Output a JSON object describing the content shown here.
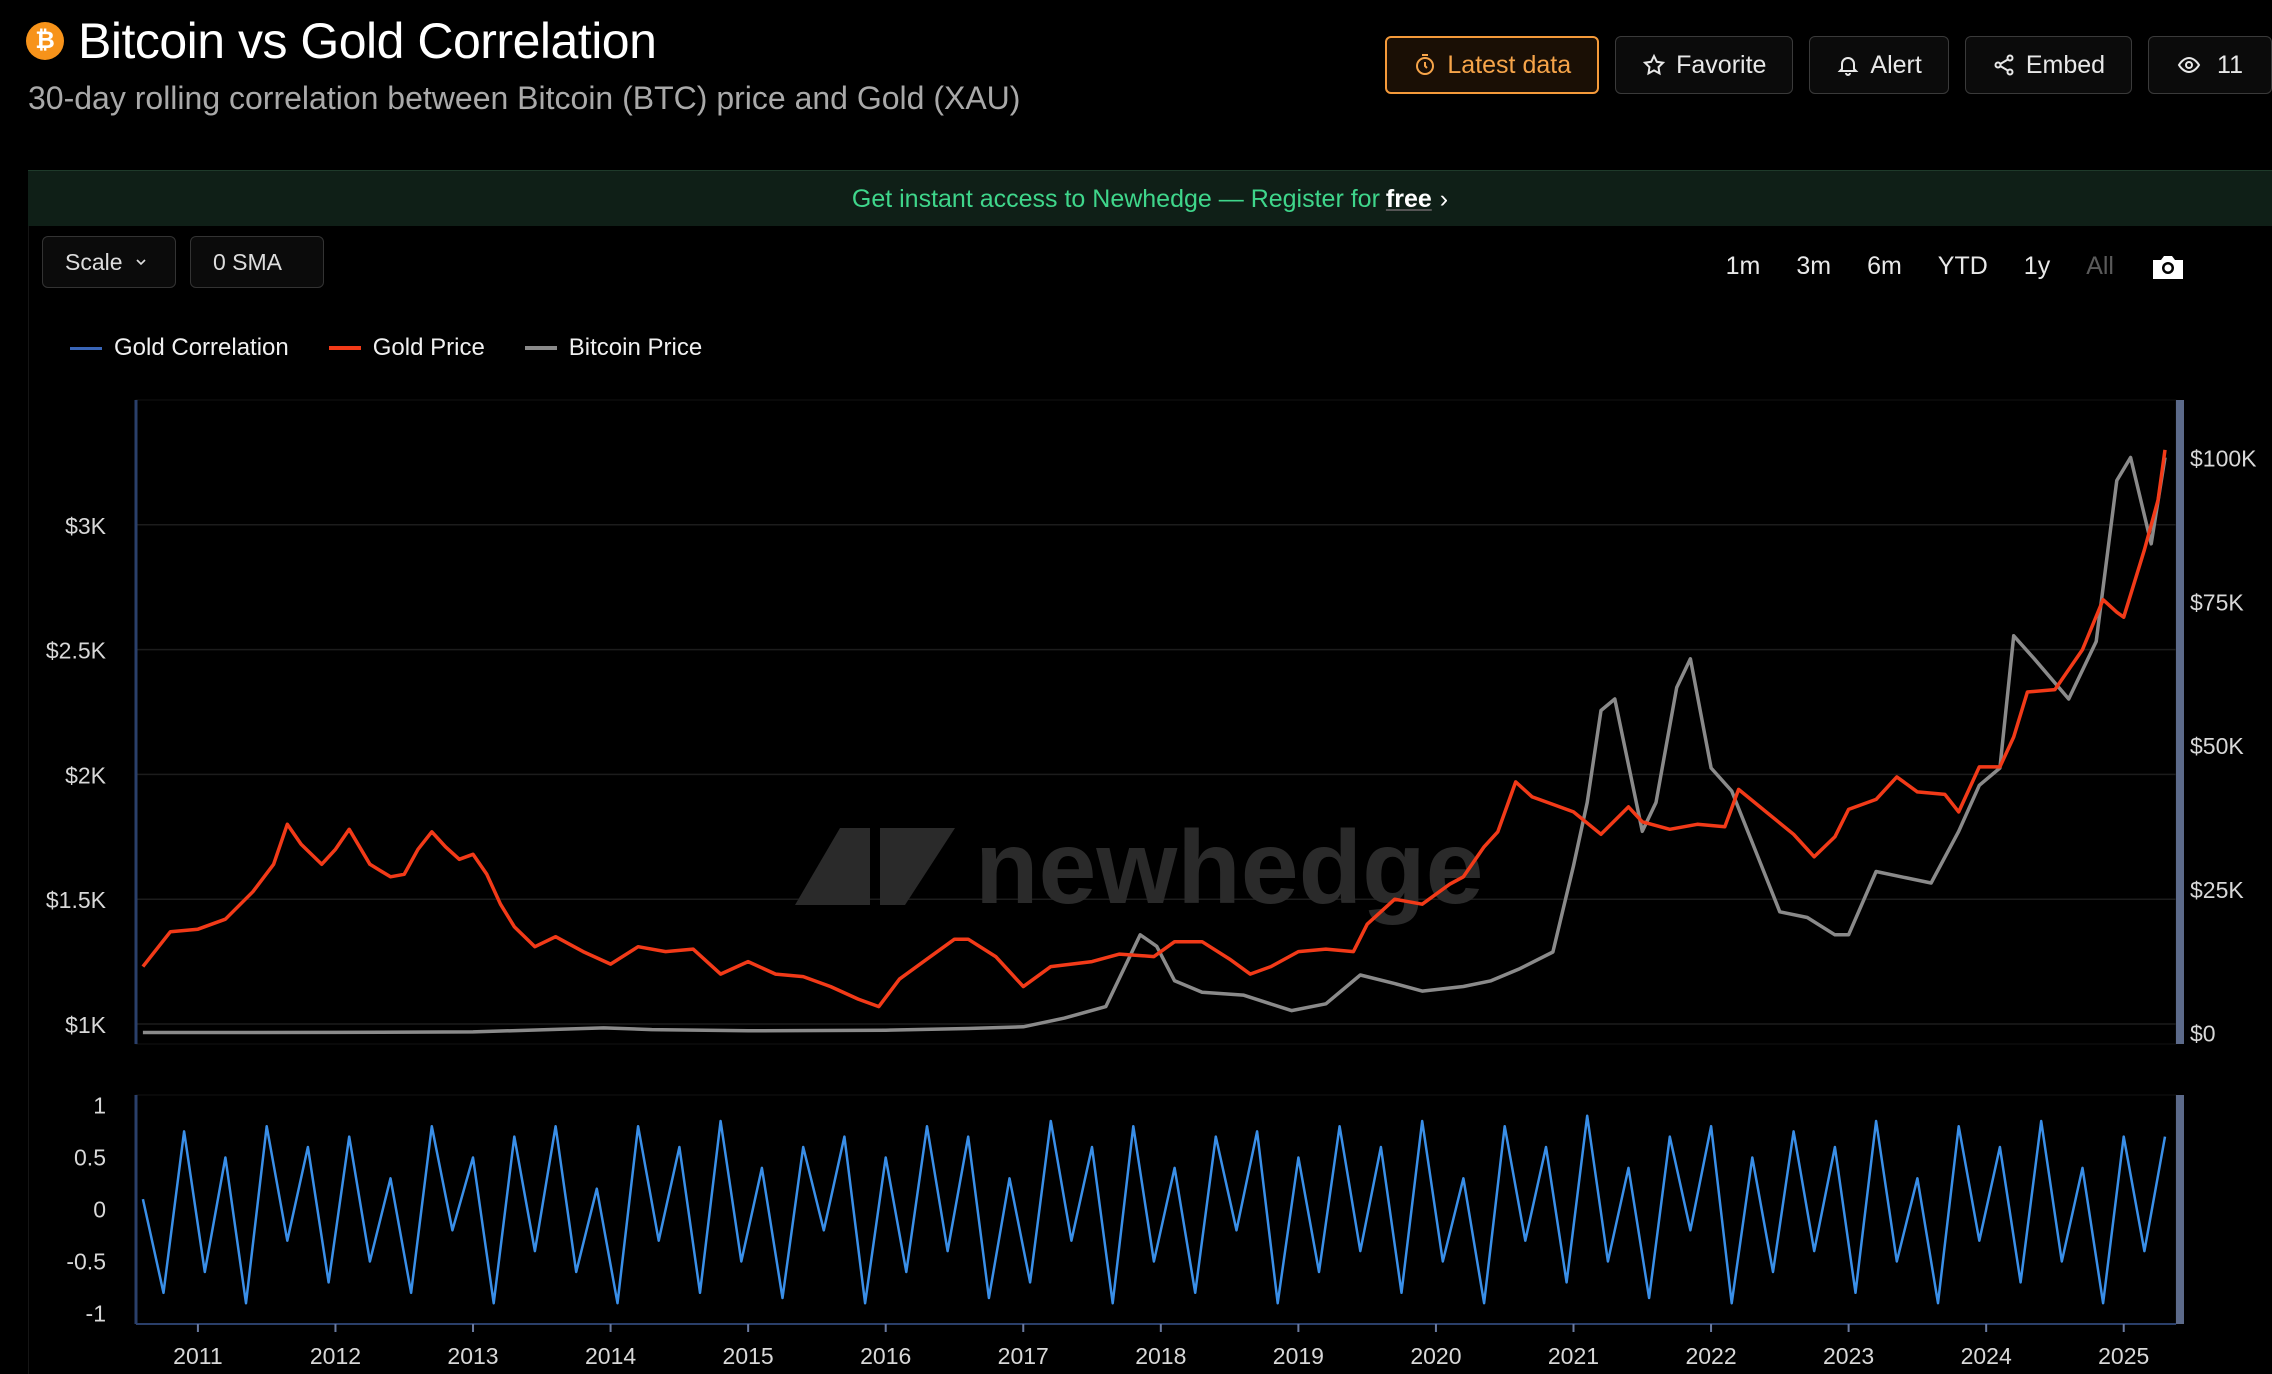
{
  "header": {
    "title": "Bitcoin vs Gold Correlation",
    "subtitle": "30-day rolling correlation between Bitcoin (BTC) price and Gold (XAU)",
    "actions": {
      "latest": "Latest data",
      "favorite": "Favorite",
      "alert": "Alert",
      "embed": "Embed",
      "views": "11"
    }
  },
  "banner": {
    "text": "Get instant access to Newhedge — Register for",
    "free": "free"
  },
  "controls": {
    "scale": "Scale",
    "sma": "0 SMA"
  },
  "ranges": [
    "1m",
    "3m",
    "6m",
    "YTD",
    "1y",
    "All"
  ],
  "watermark": "newhedge",
  "colors": {
    "correlation": "#3a8fe8",
    "gold": "#f23a18",
    "bitcoin": "#8a8a8a",
    "accent": "#f59a3a",
    "banner_text": "#3fd68b"
  },
  "chart_data": [
    {
      "type": "line",
      "panel": "price",
      "legend": [
        "Gold Correlation",
        "Gold Price",
        "Bitcoin Price"
      ],
      "legend_placement": "top-left",
      "left_axis": {
        "ticks": [
          "$1K",
          "$1.5K",
          "$2K",
          "$2.5K",
          "$3K"
        ],
        "values": [
          1000,
          1500,
          2000,
          2500,
          3000
        ],
        "ylim": [
          920,
          3500
        ]
      },
      "right_axis": {
        "ticks": [
          "$0",
          "$25K",
          "$50K",
          "$75K",
          "$100K"
        ],
        "values": [
          0,
          25000,
          50000,
          75000,
          100000
        ],
        "ylim": [
          -2000,
          110000
        ]
      },
      "xlim": [
        2010.55,
        2025.38
      ],
      "series": [
        {
          "name": "Gold Price",
          "axis": "left",
          "x": [
            2010.6,
            2010.8,
            2011.0,
            2011.2,
            2011.4,
            2011.55,
            2011.65,
            2011.75,
            2011.9,
            2012.0,
            2012.1,
            2012.25,
            2012.4,
            2012.5,
            2012.6,
            2012.7,
            2012.8,
            2012.9,
            2013.0,
            2013.1,
            2013.2,
            2013.3,
            2013.45,
            2013.6,
            2013.8,
            2014.0,
            2014.2,
            2014.4,
            2014.6,
            2014.8,
            2015.0,
            2015.2,
            2015.4,
            2015.6,
            2015.8,
            2015.95,
            2016.1,
            2016.3,
            2016.5,
            2016.6,
            2016.8,
            2017.0,
            2017.2,
            2017.5,
            2017.7,
            2017.95,
            2018.1,
            2018.3,
            2018.5,
            2018.65,
            2018.8,
            2019.0,
            2019.2,
            2019.4,
            2019.5,
            2019.7,
            2019.9,
            2020.1,
            2020.2,
            2020.35,
            2020.45,
            2020.58,
            2020.7,
            2020.85,
            2021.0,
            2021.2,
            2021.4,
            2021.5,
            2021.7,
            2021.9,
            2022.1,
            2022.2,
            2022.4,
            2022.6,
            2022.75,
            2022.9,
            2023.0,
            2023.2,
            2023.35,
            2023.5,
            2023.7,
            2023.8,
            2023.95,
            2024.1,
            2024.2,
            2024.3,
            2024.5,
            2024.7,
            2024.85,
            2024.95,
            2025.0,
            2025.15,
            2025.25,
            2025.3
          ],
          "values": [
            1230,
            1370,
            1380,
            1420,
            1530,
            1640,
            1800,
            1720,
            1640,
            1700,
            1780,
            1640,
            1590,
            1600,
            1700,
            1770,
            1710,
            1660,
            1680,
            1600,
            1480,
            1390,
            1310,
            1350,
            1290,
            1240,
            1310,
            1290,
            1300,
            1200,
            1250,
            1200,
            1190,
            1150,
            1100,
            1070,
            1180,
            1260,
            1340,
            1340,
            1270,
            1150,
            1230,
            1250,
            1280,
            1270,
            1330,
            1330,
            1260,
            1200,
            1230,
            1290,
            1300,
            1290,
            1400,
            1500,
            1480,
            1560,
            1590,
            1710,
            1770,
            1970,
            1910,
            1880,
            1850,
            1760,
            1870,
            1810,
            1780,
            1800,
            1790,
            1940,
            1850,
            1760,
            1670,
            1750,
            1860,
            1900,
            1990,
            1930,
            1920,
            1850,
            2030,
            2030,
            2150,
            2330,
            2340,
            2500,
            2700,
            2650,
            2630,
            2900,
            3100,
            3300
          ]
        },
        {
          "name": "Bitcoin Price",
          "axis": "right",
          "x": [
            2010.6,
            2012.0,
            2013.0,
            2013.95,
            2014.3,
            2015.0,
            2016.0,
            2016.6,
            2017.0,
            2017.3,
            2017.6,
            2017.85,
            2017.97,
            2018.1,
            2018.3,
            2018.6,
            2018.95,
            2019.2,
            2019.45,
            2019.7,
            2019.9,
            2020.2,
            2020.4,
            2020.6,
            2020.85,
            2021.0,
            2021.1,
            2021.2,
            2021.3,
            2021.5,
            2021.6,
            2021.75,
            2021.85,
            2022.0,
            2022.15,
            2022.35,
            2022.5,
            2022.7,
            2022.9,
            2023.0,
            2023.2,
            2023.4,
            2023.6,
            2023.8,
            2023.95,
            2024.1,
            2024.2,
            2024.35,
            2024.6,
            2024.8,
            2024.95,
            2025.05,
            2025.2,
            2025.3
          ],
          "values": [
            0,
            10,
            100,
            800,
            500,
            300,
            400,
            700,
            1000,
            2500,
            4500,
            17000,
            15000,
            9000,
            7000,
            6500,
            3800,
            5000,
            10000,
            8500,
            7200,
            8000,
            9000,
            11000,
            14000,
            29000,
            40000,
            56000,
            58000,
            35000,
            40000,
            60000,
            65000,
            46000,
            42000,
            30000,
            21000,
            20000,
            17000,
            17000,
            28000,
            27000,
            26000,
            35000,
            43000,
            46000,
            69000,
            65000,
            58000,
            68000,
            96000,
            100000,
            85000,
            100000
          ]
        }
      ]
    },
    {
      "type": "line",
      "panel": "correlation",
      "y_axis": {
        "ticks": [
          "1",
          "0.5",
          "0",
          "-0.5",
          "-1"
        ],
        "values": [
          1,
          0.5,
          0,
          -0.5,
          -1
        ],
        "ylim": [
          -1.1,
          1.1
        ]
      },
      "xlim": [
        2010.55,
        2025.38
      ],
      "x_ticks": [
        "2011",
        "2012",
        "2013",
        "2014",
        "2015",
        "2016",
        "2017",
        "2018",
        "2019",
        "2020",
        "2021",
        "2022",
        "2023",
        "2024",
        "2025"
      ],
      "series": [
        {
          "name": "Gold Correlation",
          "x": [
            2010.6,
            2010.75,
            2010.9,
            2011.05,
            2011.2,
            2011.35,
            2011.5,
            2011.65,
            2011.8,
            2011.95,
            2012.1,
            2012.25,
            2012.4,
            2012.55,
            2012.7,
            2012.85,
            2013.0,
            2013.15,
            2013.3,
            2013.45,
            2013.6,
            2013.75,
            2013.9,
            2014.05,
            2014.2,
            2014.35,
            2014.5,
            2014.65,
            2014.8,
            2014.95,
            2015.1,
            2015.25,
            2015.4,
            2015.55,
            2015.7,
            2015.85,
            2016.0,
            2016.15,
            2016.3,
            2016.45,
            2016.6,
            2016.75,
            2016.9,
            2017.05,
            2017.2,
            2017.35,
            2017.5,
            2017.65,
            2017.8,
            2017.95,
            2018.1,
            2018.25,
            2018.4,
            2018.55,
            2018.7,
            2018.85,
            2019.0,
            2019.15,
            2019.3,
            2019.45,
            2019.6,
            2019.75,
            2019.9,
            2020.05,
            2020.2,
            2020.35,
            2020.5,
            2020.65,
            2020.8,
            2020.95,
            2021.1,
            2021.25,
            2021.4,
            2021.55,
            2021.7,
            2021.85,
            2022.0,
            2022.15,
            2022.3,
            2022.45,
            2022.6,
            2022.75,
            2022.9,
            2023.05,
            2023.2,
            2023.35,
            2023.5,
            2023.65,
            2023.8,
            2023.95,
            2024.1,
            2024.25,
            2024.4,
            2024.55,
            2024.7,
            2024.85,
            2025.0,
            2025.15,
            2025.3
          ],
          "values": [
            0.1,
            -0.8,
            0.75,
            -0.6,
            0.5,
            -0.9,
            0.8,
            -0.3,
            0.6,
            -0.7,
            0.7,
            -0.5,
            0.3,
            -0.8,
            0.8,
            -0.2,
            0.5,
            -0.9,
            0.7,
            -0.4,
            0.8,
            -0.6,
            0.2,
            -0.9,
            0.8,
            -0.3,
            0.6,
            -0.8,
            0.85,
            -0.5,
            0.4,
            -0.85,
            0.6,
            -0.2,
            0.7,
            -0.9,
            0.5,
            -0.6,
            0.8,
            -0.4,
            0.7,
            -0.85,
            0.3,
            -0.7,
            0.85,
            -0.3,
            0.6,
            -0.9,
            0.8,
            -0.5,
            0.4,
            -0.8,
            0.7,
            -0.2,
            0.75,
            -0.9,
            0.5,
            -0.6,
            0.8,
            -0.4,
            0.6,
            -0.8,
            0.85,
            -0.5,
            0.3,
            -0.9,
            0.8,
            -0.3,
            0.6,
            -0.7,
            0.9,
            -0.5,
            0.4,
            -0.85,
            0.7,
            -0.2,
            0.8,
            -0.9,
            0.5,
            -0.6,
            0.75,
            -0.4,
            0.6,
            -0.8,
            0.85,
            -0.5,
            0.3,
            -0.9,
            0.8,
            -0.3,
            0.6,
            -0.7,
            0.85,
            -0.5,
            0.4,
            -0.9,
            0.7,
            -0.4,
            0.7
          ]
        }
      ]
    }
  ]
}
